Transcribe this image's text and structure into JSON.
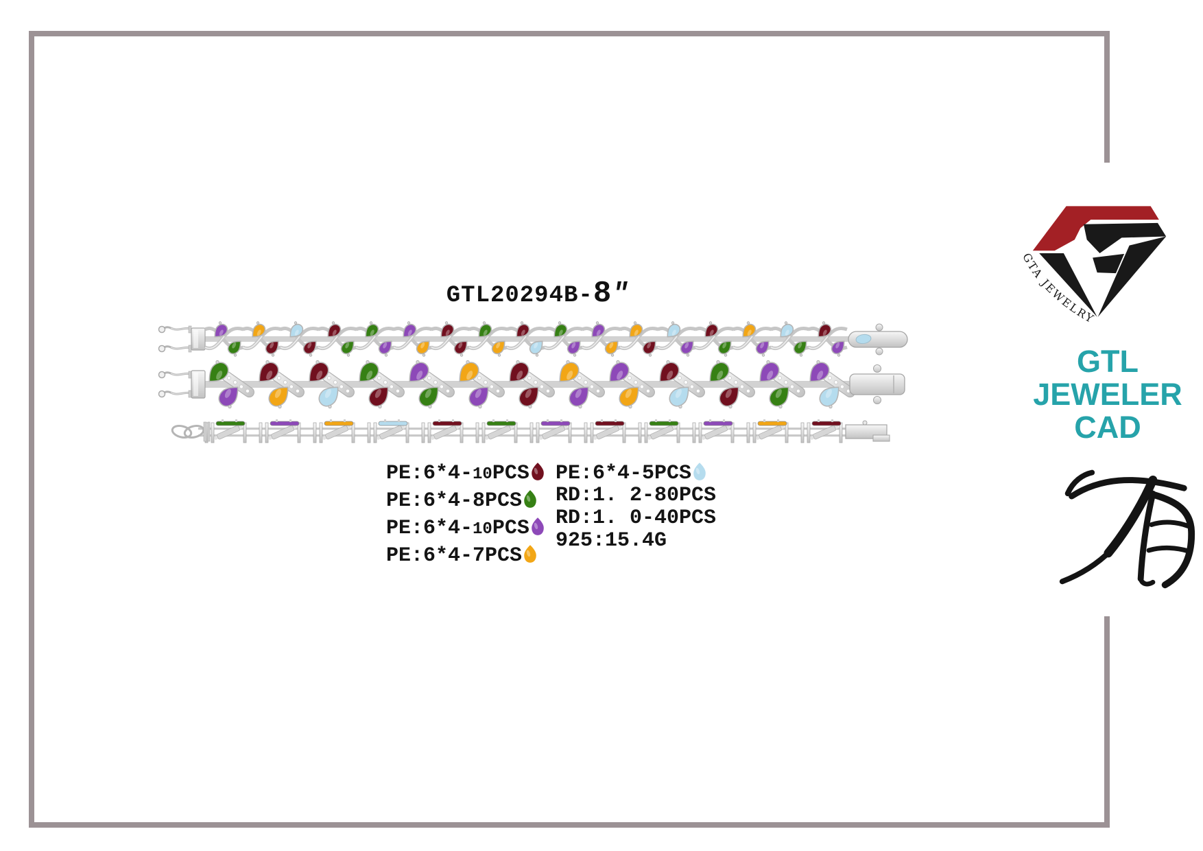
{
  "page": {
    "background": "#ffffff",
    "frame_color": "#9c9295"
  },
  "title": {
    "code": "GTL20294B-",
    "size": "8",
    "unit": "″"
  },
  "specs": {
    "left": [
      {
        "pre": "PE:6*4-",
        "small": "10",
        "post": "PCS",
        "icon": "garnet"
      },
      {
        "pre": "PE:6*4-8PCS",
        "small": "",
        "post": "",
        "icon": "peridot"
      },
      {
        "pre": "PE:6*4-",
        "small": "10",
        "post": "PCS",
        "icon": "amethyst"
      },
      {
        "pre": "PE:6*4-7PCS",
        "small": "",
        "post": "",
        "icon": "citrine"
      }
    ],
    "right": [
      {
        "pre": "PE:6*4-5PCS",
        "small": "",
        "post": "",
        "icon": "aquamarine"
      },
      {
        "pre": "RD:1. 2-80PCS",
        "small": "",
        "post": "",
        "icon": null
      },
      {
        "pre": "RD:1. 0-40PCS",
        "small": "",
        "post": "",
        "icon": null
      },
      {
        "pre": "925:15.4G",
        "small": "",
        "post": "",
        "icon": null
      }
    ]
  },
  "gems": {
    "garnet": "#71101f",
    "peridot": "#368014",
    "amethyst": "#8d49b8",
    "citrine": "#f2a616",
    "aquamarine": "#b5dcee"
  },
  "bracelets": {
    "top_view": {
      "upper": [
        "amethyst",
        "citrine",
        "aquamarine",
        "garnet",
        "peridot",
        "amethyst",
        "garnet",
        "peridot",
        "garnet",
        "peridot",
        "amethyst",
        "citrine",
        "aquamarine",
        "garnet",
        "citrine",
        "aquamarine",
        "garnet"
      ],
      "lower": [
        "peridot",
        "garnet",
        "garnet",
        "peridot",
        "amethyst",
        "citrine",
        "garnet",
        "citrine",
        "aquamarine",
        "amethyst",
        "citrine",
        "garnet",
        "amethyst",
        "peridot",
        "amethyst",
        "peridot",
        "amethyst"
      ]
    },
    "front_view": {
      "pairs": [
        [
          "peridot",
          "amethyst"
        ],
        [
          "garnet",
          "citrine"
        ],
        [
          "garnet",
          "aquamarine"
        ],
        [
          "peridot",
          "garnet"
        ],
        [
          "amethyst",
          "peridot"
        ],
        [
          "citrine",
          "amethyst"
        ],
        [
          "garnet",
          "garnet"
        ],
        [
          "citrine",
          "amethyst"
        ],
        [
          "amethyst",
          "citrine"
        ],
        [
          "garnet",
          "aquamarine"
        ],
        [
          "peridot",
          "garnet"
        ],
        [
          "amethyst",
          "peridot"
        ],
        [
          "amethyst",
          "aquamarine"
        ]
      ]
    },
    "side_view": {
      "bars": [
        "peridot",
        "amethyst",
        "citrine",
        "aquamarine",
        "garnet",
        "peridot",
        "amethyst",
        "garnet",
        "peridot",
        "amethyst",
        "citrine",
        "garnet"
      ]
    }
  },
  "logo": {
    "arc_text": "GTA JEWELRY",
    "red": "#a32025",
    "black": "#191919",
    "teal": "#26a3aa",
    "brand_lines": [
      "GTL",
      "JEWELER",
      "CAD"
    ]
  },
  "calligraphy": {
    "char": "有"
  }
}
